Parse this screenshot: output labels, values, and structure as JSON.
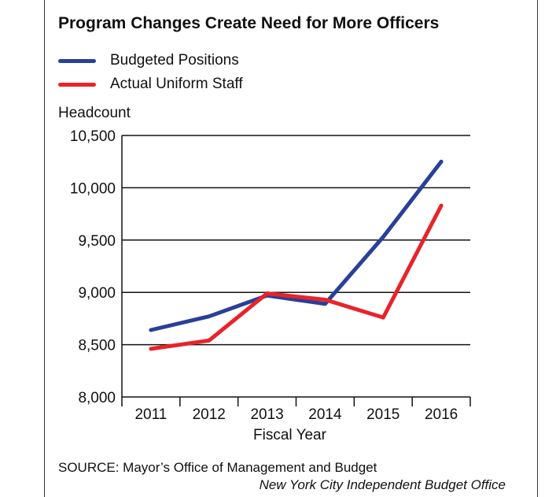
{
  "chart_data": {
    "type": "line",
    "title": "Program Changes Create Need for More Officers",
    "ylabel": "Headcount",
    "xlabel": "Fiscal Year",
    "x": [
      "2011",
      "2012",
      "2013",
      "2014",
      "2015",
      "2016"
    ],
    "ylim": [
      8000,
      10500
    ],
    "yticks": [
      8000,
      8500,
      9000,
      9500,
      10000,
      10500
    ],
    "ytick_labels": [
      "8,000",
      "8,500",
      "9,000",
      "9,500",
      "10,000",
      "10,500"
    ],
    "grid": "horizontal",
    "legend_position": "top-left",
    "series": [
      {
        "name": "Budgeted Positions",
        "color": "#2a3f97",
        "values": [
          8640,
          8770,
          8970,
          8890,
          9530,
          10250
        ]
      },
      {
        "name": "Actual Uniform Staff",
        "color": "#e8232a",
        "values": [
          8460,
          8540,
          8990,
          8930,
          8760,
          9830
        ]
      }
    ]
  },
  "footer": {
    "source": "SOURCE: Mayor’s Office of Management and Budget",
    "credit": "New York City Independent Budget Office"
  }
}
